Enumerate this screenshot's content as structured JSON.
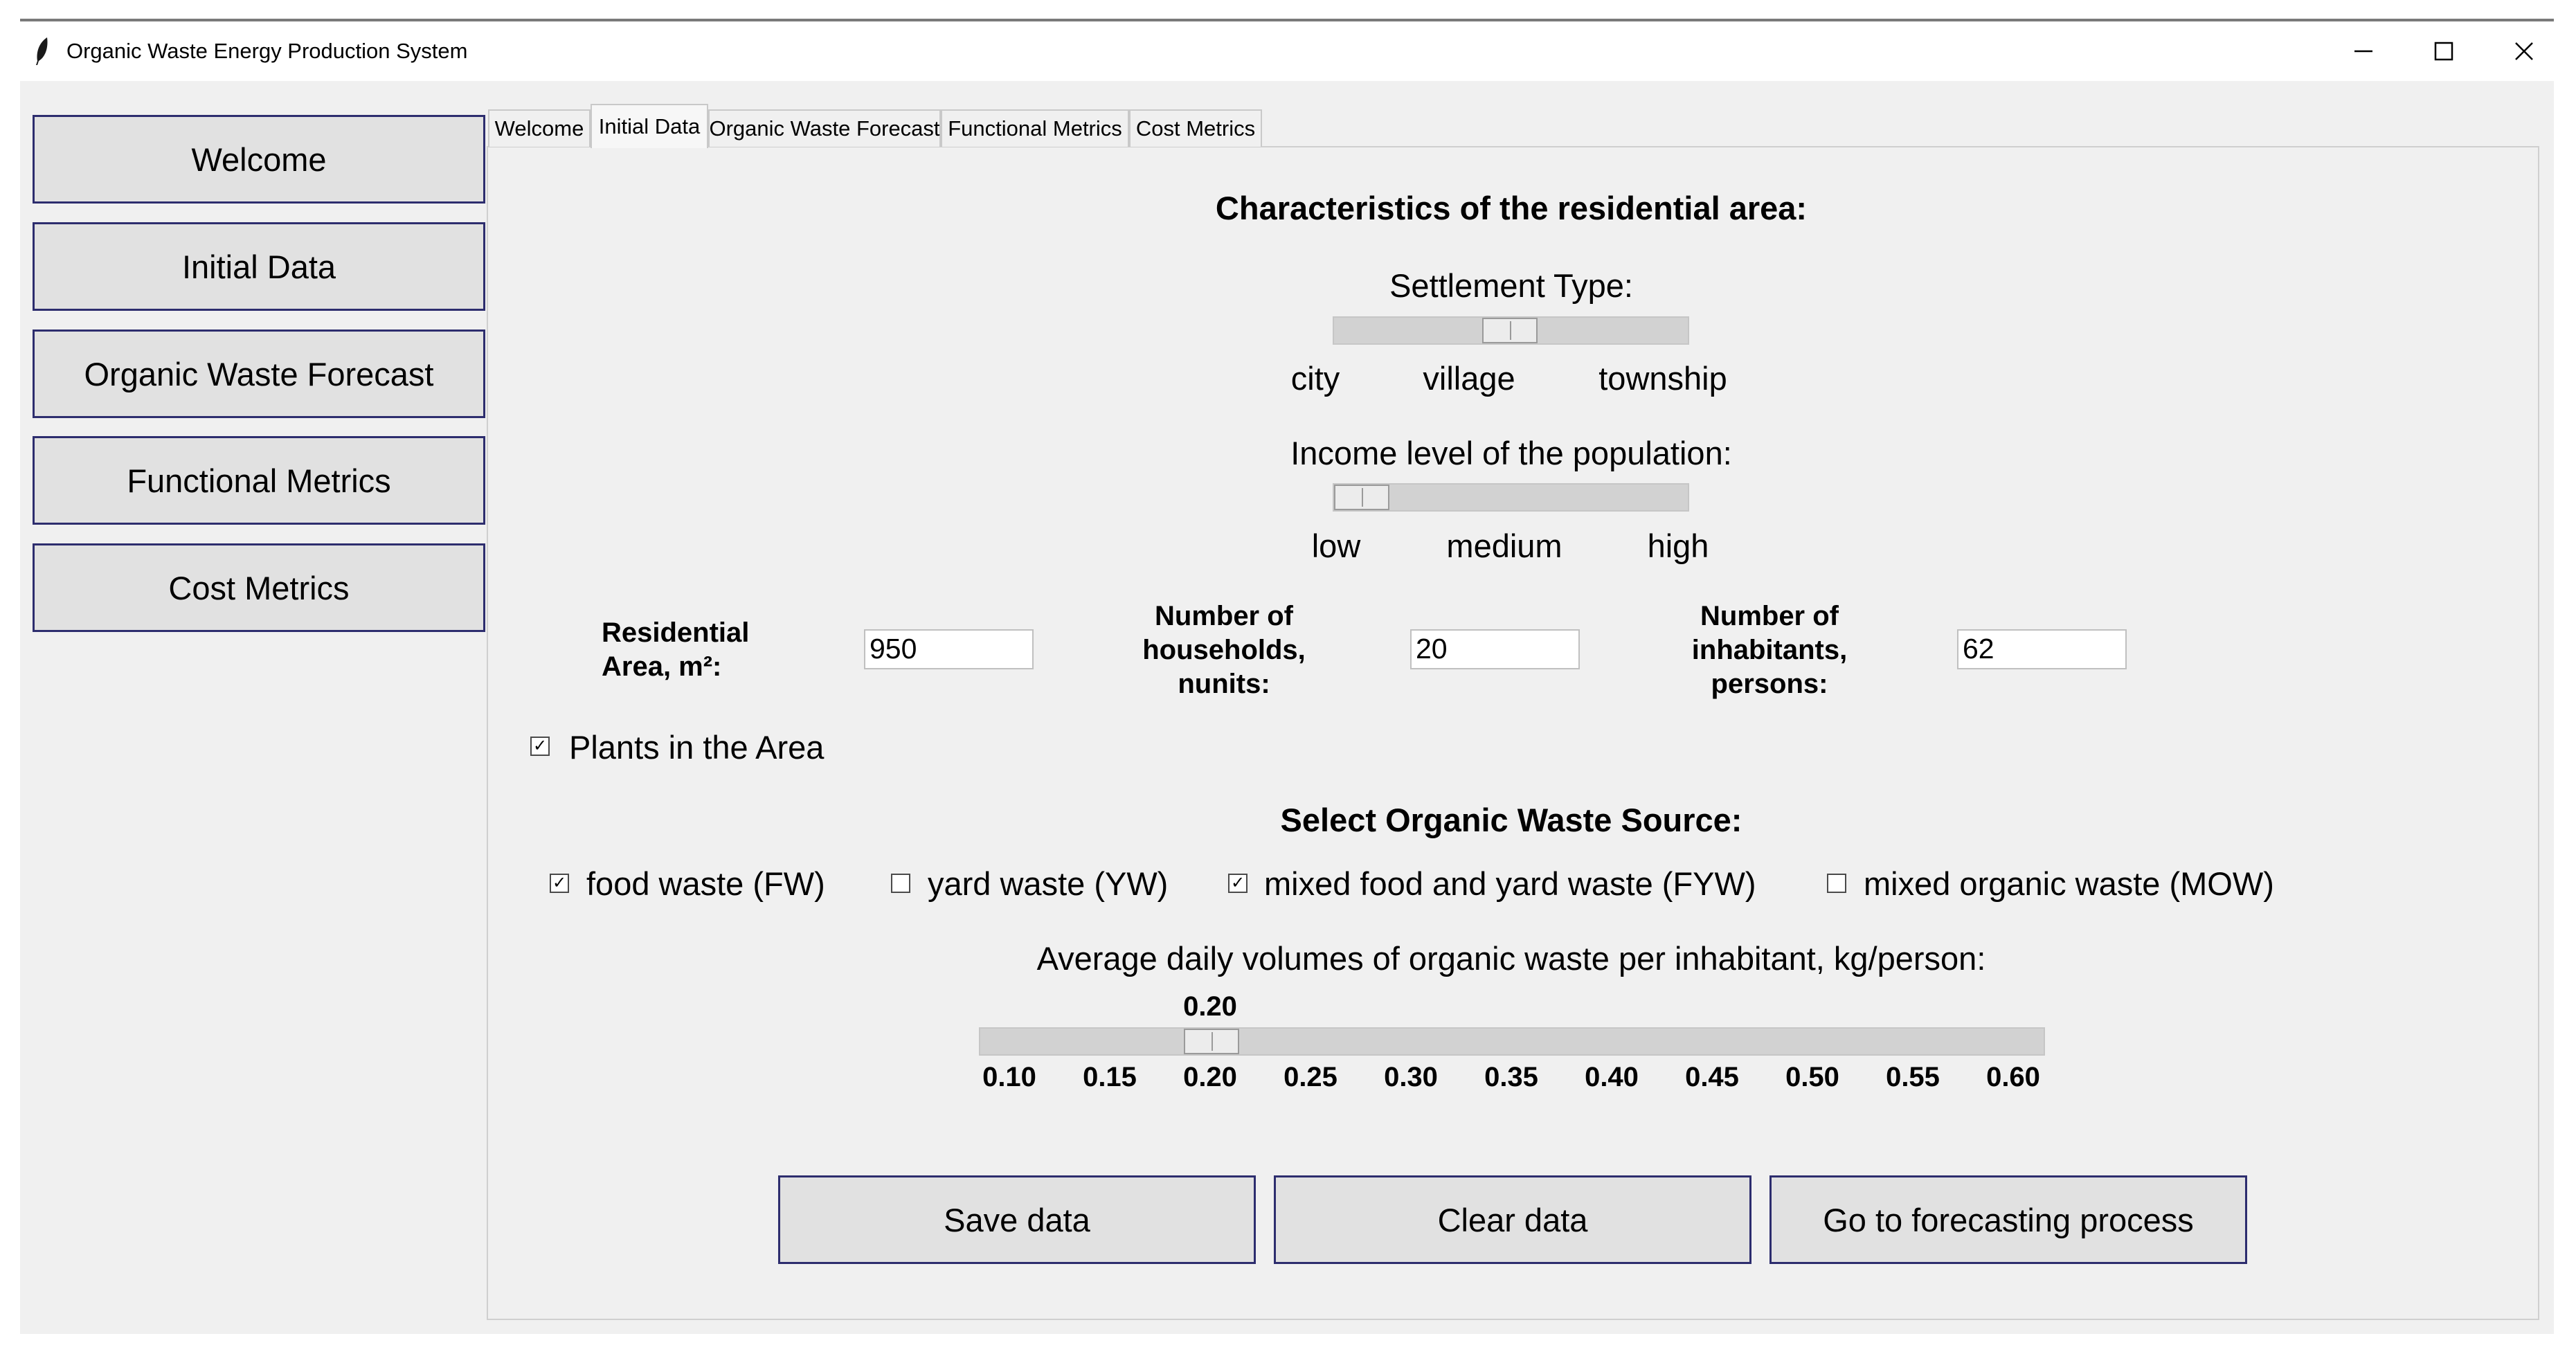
{
  "window": {
    "title": "Organic Waste Energy Production System",
    "icon": "feather-icon",
    "controls": [
      "minimize-icon",
      "maximize-icon",
      "close-icon"
    ]
  },
  "sidebar": {
    "items": [
      {
        "label": "Welcome"
      },
      {
        "label": "Initial Data"
      },
      {
        "label": "Organic Waste Forecast"
      },
      {
        "label": "Functional Metrics"
      },
      {
        "label": "Cost Metrics"
      }
    ]
  },
  "tabs": {
    "items": [
      {
        "label": "Welcome"
      },
      {
        "label": "Initial Data"
      },
      {
        "label": "Organic Waste Forecast"
      },
      {
        "label": "Functional Metrics"
      },
      {
        "label": "Cost Metrics"
      }
    ],
    "active": "Initial Data"
  },
  "residential": {
    "heading": "Characteristics of the residential area:",
    "settlement": {
      "label": "Settlement Type:",
      "options": [
        "city",
        "village",
        "township"
      ],
      "selected": "village",
      "level": 0.5
    },
    "income": {
      "label": "Income level of the population:",
      "options": [
        "low",
        "medium",
        "high"
      ],
      "selected": "low",
      "level": 0.0
    }
  },
  "fields": {
    "area": {
      "label_line1": "Residential",
      "label_line2": "Area, m²:",
      "value": "950"
    },
    "households": {
      "label_line1": "Number of",
      "label_line2": "households,",
      "label_line3": "nunits:",
      "value": "20"
    },
    "inhabitants": {
      "label_line1": "Number of",
      "label_line2": "inhabitants,",
      "label_line3": "persons:",
      "value": "62"
    }
  },
  "plants": {
    "label": "Plants in the Area",
    "checked": true,
    "mark": "✓"
  },
  "waste_source": {
    "heading": "Select Organic Waste Source:",
    "options": [
      {
        "label": "food waste (FW)",
        "checked": true,
        "mark": "✓"
      },
      {
        "label": "yard waste (YW)",
        "checked": false,
        "mark": ""
      },
      {
        "label": "mixed food and yard waste (FYW)",
        "checked": true,
        "mark": "✓"
      },
      {
        "label": "mixed organic waste (MOW)",
        "checked": false,
        "mark": ""
      }
    ]
  },
  "daily_volume": {
    "label": "Average daily volumes of organic waste per inhabitant, kg/person:",
    "value": 0.2,
    "value_label": "0.20",
    "min": 0.1,
    "max": 0.6,
    "ticks": [
      "0.10",
      "0.15",
      "0.20",
      "0.25",
      "0.30",
      "0.35",
      "0.40",
      "0.45",
      "0.50",
      "0.55",
      "0.60"
    ]
  },
  "actions": {
    "save": "Save data",
    "clear": "Clear data",
    "forecast": "Go to forecasting process"
  }
}
